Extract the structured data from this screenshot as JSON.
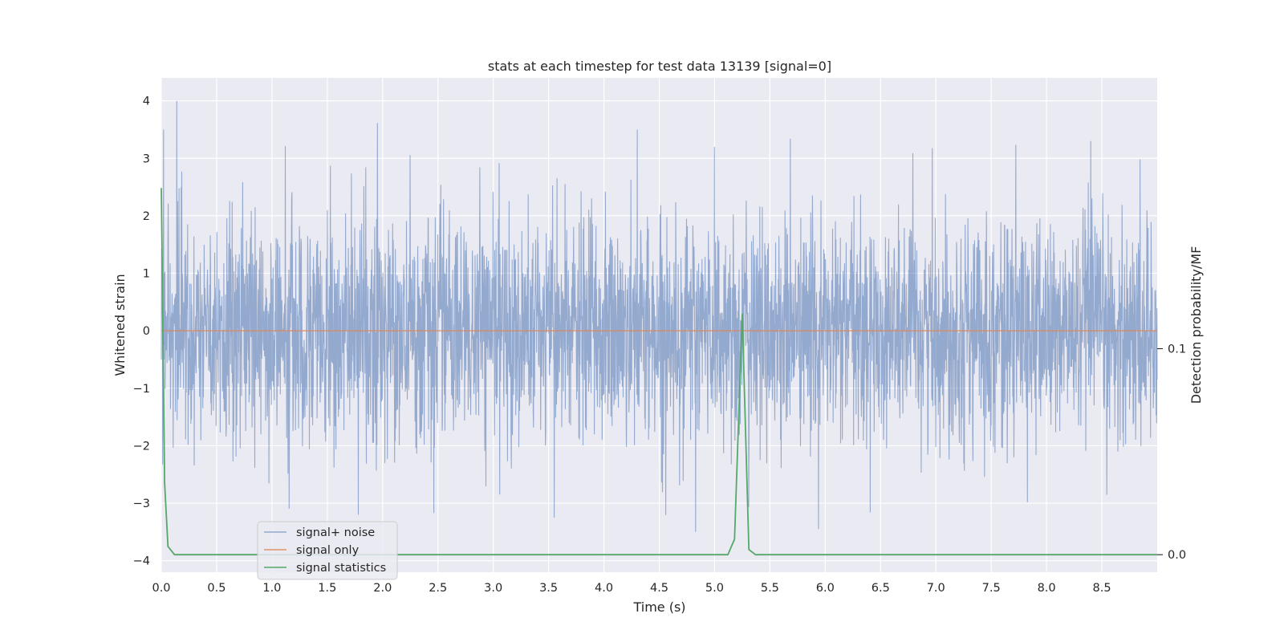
{
  "chart_data": {
    "type": "line",
    "title": "stats at each timestep for test data 13139 [signal=0]",
    "xlabel": "Time (s)",
    "ylabel": "Whitened strain",
    "ylabel_right": "Detection probability/MF",
    "xlim": [
      0,
      9.0
    ],
    "ylim": [
      -4.2,
      4.4
    ],
    "ylim_right": [
      -0.0085,
      0.2315
    ],
    "x_ticks": [
      "0.0",
      "0.5",
      "1.0",
      "1.5",
      "2.0",
      "2.5",
      "3.0",
      "3.5",
      "4.0",
      "4.5",
      "5.0",
      "5.5",
      "6.0",
      "6.5",
      "7.0",
      "7.5",
      "8.0",
      "8.5"
    ],
    "x_tick_values": [
      0,
      0.5,
      1,
      1.5,
      2,
      2.5,
      3,
      3.5,
      4,
      4.5,
      5,
      5.5,
      6,
      6.5,
      7,
      7.5,
      8,
      8.5
    ],
    "y_ticks": [
      "4",
      "3",
      "2",
      "1",
      "0",
      "−1",
      "−2",
      "−3",
      "−4"
    ],
    "y_tick_values": [
      4,
      3,
      2,
      1,
      0,
      -1,
      -2,
      -3,
      -4
    ],
    "y_right_ticks": [
      "0.1",
      "0.0"
    ],
    "y_right_tick_values": [
      0.1,
      0.0
    ],
    "grid": true,
    "legend_position": "lower-left",
    "series": [
      {
        "name": "signal+ noise",
        "color": "#4c72b0",
        "axis": "left",
        "style": "dense noise, mostly within ±1.5 with spikes reaching about ±3.5",
        "peaks": [
          {
            "x": 0.14,
            "y": 4.0
          },
          {
            "x": 0.02,
            "y": 3.5
          },
          {
            "x": 4.3,
            "y": 3.5
          },
          {
            "x": 5.0,
            "y": 3.2
          },
          {
            "x": 8.4,
            "y": 3.3
          },
          {
            "x": 1.78,
            "y": -3.2
          },
          {
            "x": 4.83,
            "y": -3.5
          },
          {
            "x": 5.94,
            "y": -3.45
          },
          {
            "x": 3.55,
            "y": -3.25
          }
        ]
      },
      {
        "name": "signal only",
        "color": "#dd8452",
        "axis": "left",
        "x": [
          0,
          9.0
        ],
        "y": [
          0,
          0
        ]
      },
      {
        "name": "signal statistics",
        "color": "#55a868",
        "axis": "right",
        "x": [
          0.0,
          0.03,
          0.06,
          0.12,
          0.5,
          1.0,
          1.5,
          2.0,
          2.5,
          3.0,
          3.5,
          4.0,
          4.5,
          5.0,
          5.12,
          5.18,
          5.25,
          5.31,
          5.37,
          5.5,
          6.0,
          6.5,
          7.0,
          7.5,
          8.0,
          8.5,
          9.0
        ],
        "y": [
          0.178,
          0.035,
          0.004,
          0.0,
          0.0,
          0.0,
          0.0,
          0.0,
          0.0,
          0.0,
          0.0,
          0.0,
          0.0,
          0.0,
          0.0,
          0.0075,
          0.117,
          0.0025,
          0.0,
          0.0,
          0.0,
          0.0,
          0.0,
          0.0,
          0.0,
          0.0,
          0.0
        ]
      }
    ]
  }
}
